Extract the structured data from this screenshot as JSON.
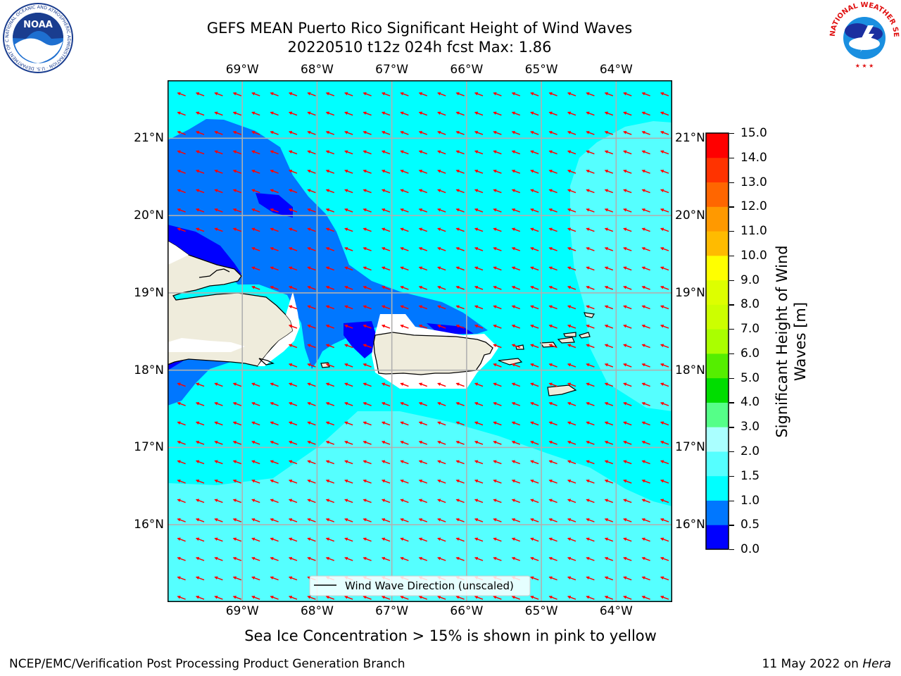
{
  "header": {
    "title_line1": "GEFS MEAN Puerto Rico Significant Height of Wind Waves",
    "title_line2": "20220510 t12z 024h fcst   Max: 1.86"
  },
  "logos": {
    "noara_text": "NOAA",
    "noaa_ring_text": "NATIONAL OCEANIC AND ATMOSPHERIC ADMINISTRATION · U.S. DEPARTMENT OF COMMERCE",
    "nws_ring_text": "NATIONAL WEATHER SERVICE"
  },
  "map": {
    "lon_labels": [
      "69°W",
      "68°W",
      "67°W",
      "66°W",
      "65°W",
      "64°W"
    ],
    "lat_labels": [
      "21°N",
      "20°N",
      "19°N",
      "18°N",
      "17°N",
      "16°N"
    ],
    "lon_values": [
      -69,
      -68,
      -67,
      -66,
      -65,
      -64
    ],
    "lat_values": [
      21,
      20,
      19,
      18,
      17,
      16
    ],
    "extent": {
      "lon_min": -70,
      "lon_max": -63.25,
      "lat_min": 15,
      "lat_max": 21.75
    },
    "legend_label": "Wind Wave Direction (unscaled)",
    "wind_direction_deg_from_north": 290,
    "colors": {
      "land": "#efecdc",
      "arrow": "#ff0000",
      "grid": "#b0b0b0"
    }
  },
  "colorbar": {
    "title": "Significant Height of Wind Waves [m]",
    "tick_labels": [
      "15.0",
      "14.0",
      "13.0",
      "12.0",
      "11.0",
      "10.0",
      "9.0",
      "8.0",
      "7.0",
      "6.0",
      "5.0",
      "4.0",
      "3.0",
      "2.0",
      "1.5",
      "1.0",
      "0.5",
      "0.0"
    ],
    "bins": [
      {
        "from": "0.0",
        "to": "0.5",
        "color": "#0000ff"
      },
      {
        "from": "0.5",
        "to": "1.0",
        "color": "#0077ff"
      },
      {
        "from": "1.0",
        "to": "1.5",
        "color": "#00ffff"
      },
      {
        "from": "1.5",
        "to": "2.0",
        "color": "#55ffff"
      },
      {
        "from": "2.0",
        "to": "3.0",
        "color": "#aaffff"
      },
      {
        "from": "3.0",
        "to": "4.0",
        "color": "#55ff88"
      },
      {
        "from": "4.0",
        "to": "5.0",
        "color": "#00dd00"
      },
      {
        "from": "5.0",
        "to": "6.0",
        "color": "#55ee00"
      },
      {
        "from": "6.0",
        "to": "7.0",
        "color": "#aaff00"
      },
      {
        "from": "7.0",
        "to": "8.0",
        "color": "#ccff00"
      },
      {
        "from": "8.0",
        "to": "9.0",
        "color": "#ddff00"
      },
      {
        "from": "9.0",
        "to": "10.0",
        "color": "#ffff00"
      },
      {
        "from": "10.0",
        "to": "11.0",
        "color": "#ffbb00"
      },
      {
        "from": "11.0",
        "to": "12.0",
        "color": "#ff9900"
      },
      {
        "from": "12.0",
        "to": "13.0",
        "color": "#ff6600"
      },
      {
        "from": "13.0",
        "to": "14.0",
        "color": "#ff3300"
      },
      {
        "from": "14.0",
        "to": "15.0",
        "color": "#ff0000"
      }
    ]
  },
  "footer": {
    "note": "Sea Ice Concentration > 15% is shown in pink to yellow",
    "left": "NCEP/EMC/Verification Post Processing Product Generation Branch",
    "right_prefix": "11 May 2022 on ",
    "right_host": "Hera"
  }
}
